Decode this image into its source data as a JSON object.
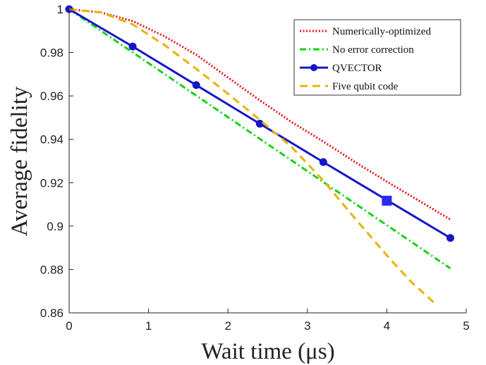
{
  "chart_data": {
    "type": "line",
    "xlabel": "Wait time (μs)",
    "ylabel": "Average fidelity",
    "xlim": [
      0,
      5
    ],
    "ylim": [
      0.86,
      1
    ],
    "xticks": [
      "0",
      "1",
      "2",
      "3",
      "4",
      "5"
    ],
    "yticks": [
      "0.86",
      "0.88",
      "0.9",
      "0.92",
      "0.94",
      "0.96",
      "0.98",
      "1"
    ],
    "grid": false,
    "legend_position": "top-right",
    "series": [
      {
        "name": "Numerically-optimized",
        "color": "#e8141a",
        "style": "dotted",
        "x": [
          0,
          0.4,
          0.8,
          1.2,
          1.6,
          2.0,
          2.4,
          2.8,
          3.2,
          3.6,
          4.0,
          4.4,
          4.8
        ],
        "y": [
          1.0,
          0.9985,
          0.9945,
          0.9875,
          0.979,
          0.9685,
          0.958,
          0.948,
          0.939,
          0.9295,
          0.9205,
          0.9118,
          0.903
        ]
      },
      {
        "name": "No error correction",
        "color": "#17d117",
        "style": "dashdot",
        "x": [
          0,
          4.8
        ],
        "y": [
          1.0,
          0.8805
        ]
      },
      {
        "name": "QVECTOR",
        "color": "#1515c8",
        "style": "solid",
        "marker": "circle",
        "x": [
          0,
          0.8,
          1.6,
          2.4,
          3.2,
          4.8
        ],
        "y": [
          1.0,
          0.9828,
          0.965,
          0.9472,
          0.9295,
          0.8945
        ],
        "highlight": {
          "marker": "square",
          "color": "#2a2af0",
          "x": 4.0,
          "y": 0.9117
        }
      },
      {
        "name": "Five qubit code",
        "color": "#e7b20c",
        "style": "dashed",
        "x": [
          0,
          0.4,
          0.8,
          1.2,
          1.6,
          2.0,
          2.4,
          2.8,
          3.2,
          3.6,
          4.0,
          4.3,
          4.6
        ],
        "y": [
          1.0,
          0.9985,
          0.993,
          0.9835,
          0.9725,
          0.961,
          0.949,
          0.9365,
          0.921,
          0.9035,
          0.8865,
          0.8745,
          0.8645
        ]
      }
    ]
  }
}
